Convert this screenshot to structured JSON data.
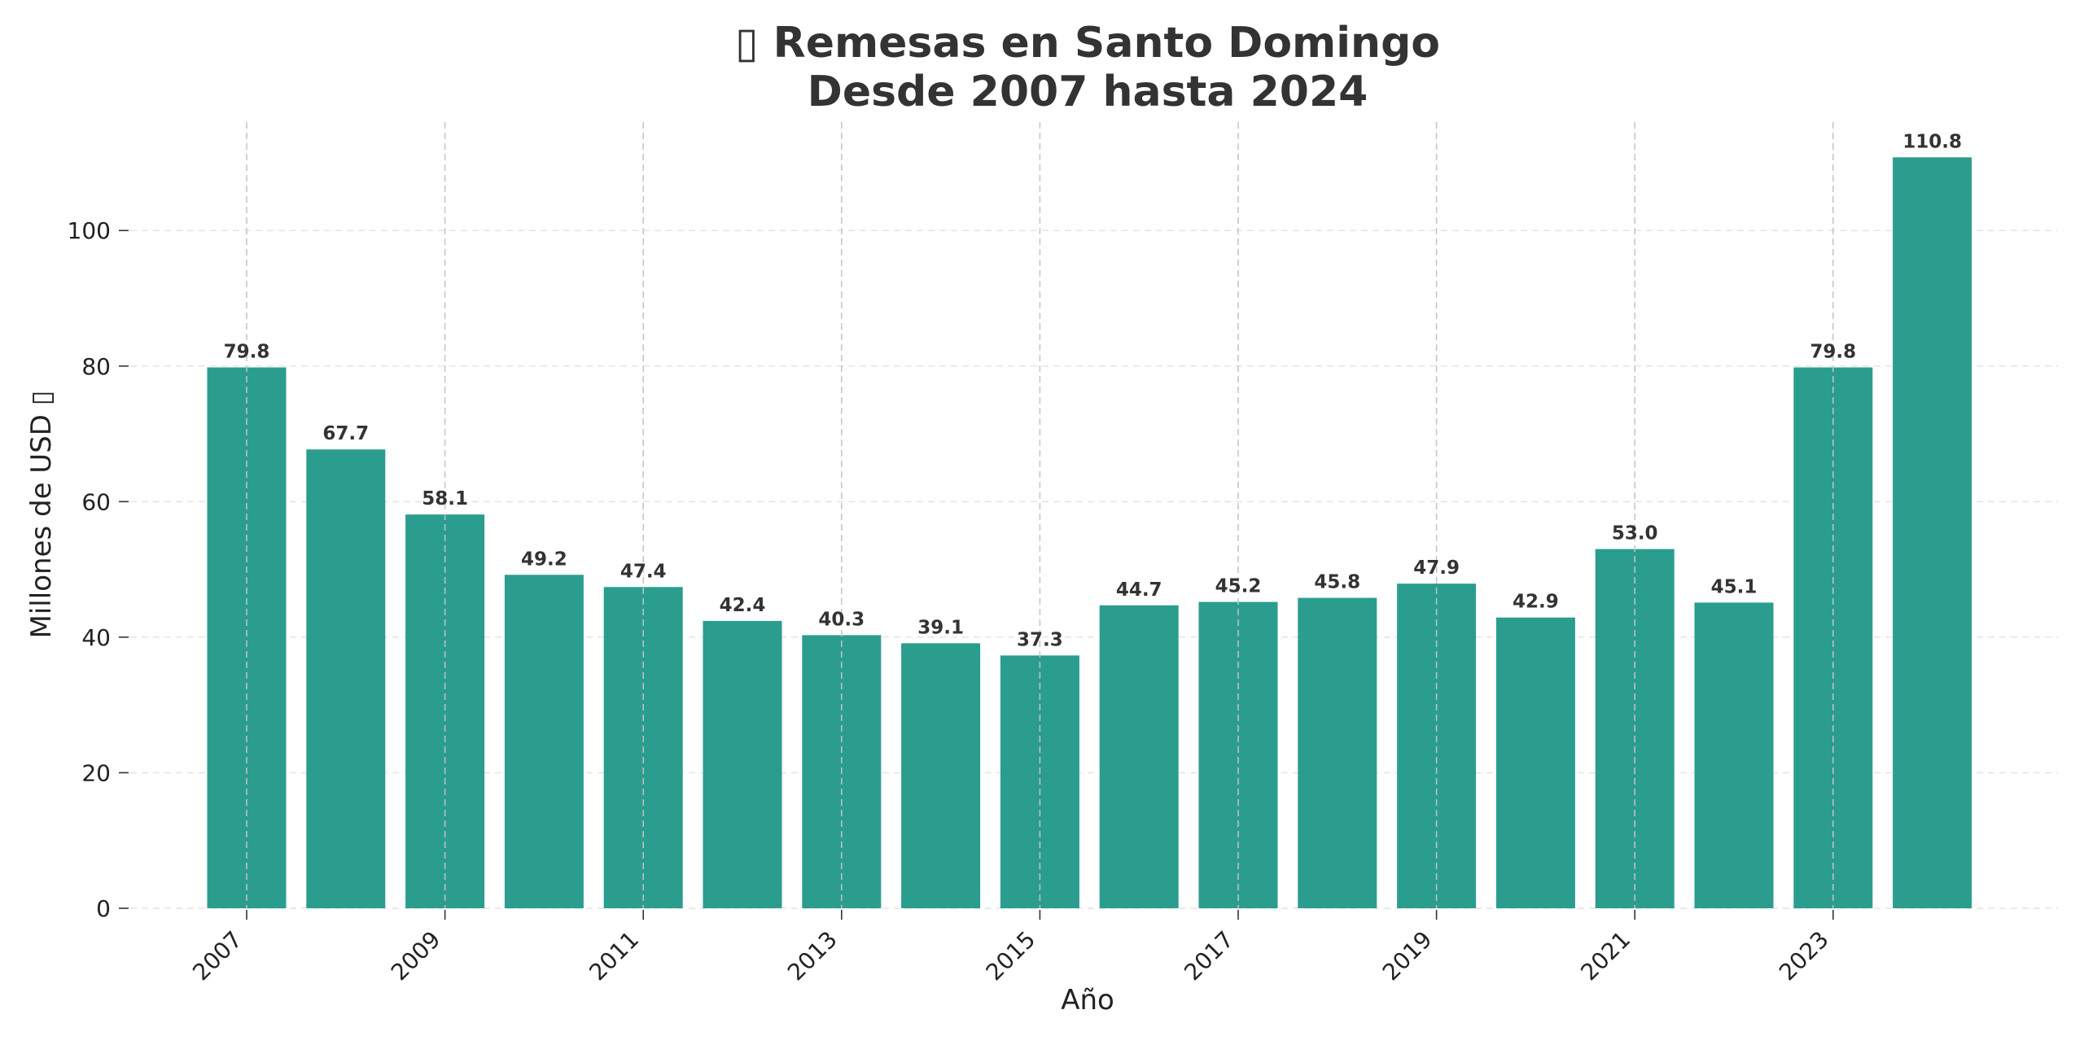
{
  "chart_data": {
    "type": "bar",
    "title_line1": "▯ Remesas en Santo Domingo",
    "title_line2": "Desde 2007 hasta 2024",
    "xlabel": "Año",
    "ylabel": "Millones de USD ▯",
    "categories": [
      "2007",
      "2008",
      "2009",
      "2010",
      "2011",
      "2012",
      "2013",
      "2014",
      "2015",
      "2016",
      "2017",
      "2018",
      "2019",
      "2020",
      "2021",
      "2022",
      "2023",
      "2024"
    ],
    "values": [
      79.8,
      67.7,
      58.1,
      49.2,
      47.4,
      42.4,
      40.3,
      39.1,
      37.3,
      44.7,
      45.2,
      45.8,
      47.9,
      42.9,
      53.0,
      45.1,
      79.8,
      110.8
    ],
    "value_labels": [
      "79.8",
      "67.7",
      "58.1",
      "49.2",
      "47.4",
      "42.4",
      "40.3",
      "39.1",
      "37.3",
      "44.7",
      "45.2",
      "45.8",
      "47.9",
      "42.9",
      "53.0",
      "45.1",
      "79.8",
      "110.8"
    ],
    "x_tick_labels": [
      "2007",
      "2009",
      "2011",
      "2013",
      "2015",
      "2017",
      "2019",
      "2021",
      "2023"
    ],
    "y_ticks": [
      0,
      20,
      40,
      60,
      80,
      100
    ],
    "y_tick_labels": [
      "0",
      "20",
      "40",
      "60",
      "80",
      "100"
    ],
    "ylim": [
      0,
      116
    ],
    "grid": true,
    "bar_color": "#2a9d8f",
    "text_color": "#333333"
  }
}
